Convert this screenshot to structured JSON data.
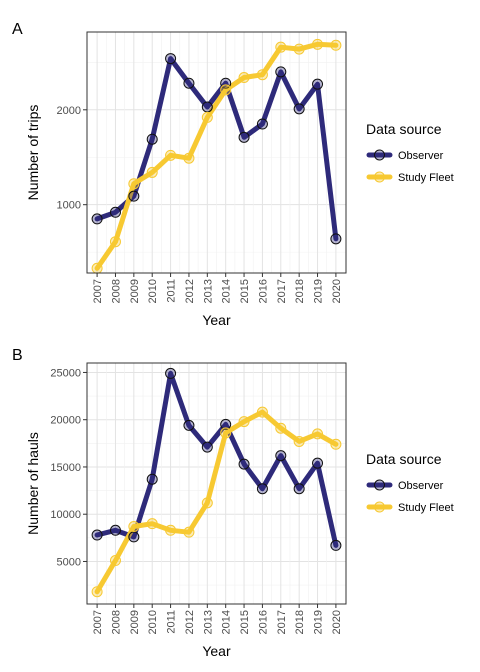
{
  "colors": {
    "observer": "#2e2a7a",
    "study_fleet": "#f7c932",
    "marker_edge_observer": "#111111",
    "marker_edge_fleet": "#f7c932"
  },
  "chart_data": [
    {
      "type": "line",
      "panel_tag": "A",
      "xlabel": "Year",
      "ylabel": "Number of trips",
      "x": [
        2007,
        2008,
        2009,
        2010,
        2011,
        2012,
        2013,
        2014,
        2015,
        2016,
        2017,
        2018,
        2019,
        2020
      ],
      "ylim": [
        280,
        2820
      ],
      "yticks": [
        1000,
        2000
      ],
      "grid": true,
      "legend_placement": "right",
      "legend_title": "Data source",
      "series": [
        {
          "name": "Observer",
          "color_key": "observer",
          "values": [
            850,
            920,
            1090,
            1690,
            2540,
            2280,
            2030,
            2280,
            1710,
            1850,
            2400,
            2010,
            2270,
            640
          ]
        },
        {
          "name": "Study Fleet",
          "color_key": "study_fleet",
          "values": [
            330,
            610,
            1220,
            1340,
            1520,
            1490,
            1920,
            2210,
            2340,
            2370,
            2660,
            2640,
            2690,
            2680
          ]
        }
      ]
    },
    {
      "type": "line",
      "panel_tag": "B",
      "xlabel": "Year",
      "ylabel": "Number of hauls",
      "x": [
        2007,
        2008,
        2009,
        2010,
        2011,
        2012,
        2013,
        2014,
        2015,
        2016,
        2017,
        2018,
        2019,
        2020
      ],
      "ylim": [
        500,
        26000
      ],
      "yticks": [
        5000,
        10000,
        15000,
        20000,
        25000
      ],
      "grid": true,
      "legend_placement": "right",
      "legend_title": "Data source",
      "series": [
        {
          "name": "Observer",
          "color_key": "observer",
          "values": [
            7800,
            8300,
            7600,
            13700,
            24900,
            19400,
            17100,
            19500,
            15300,
            12700,
            16200,
            12700,
            15400,
            6700
          ]
        },
        {
          "name": "Study Fleet",
          "color_key": "study_fleet",
          "values": [
            1800,
            5100,
            8700,
            9000,
            8300,
            8100,
            11200,
            18600,
            19800,
            20800,
            19100,
            17700,
            18500,
            17400
          ]
        }
      ]
    }
  ]
}
